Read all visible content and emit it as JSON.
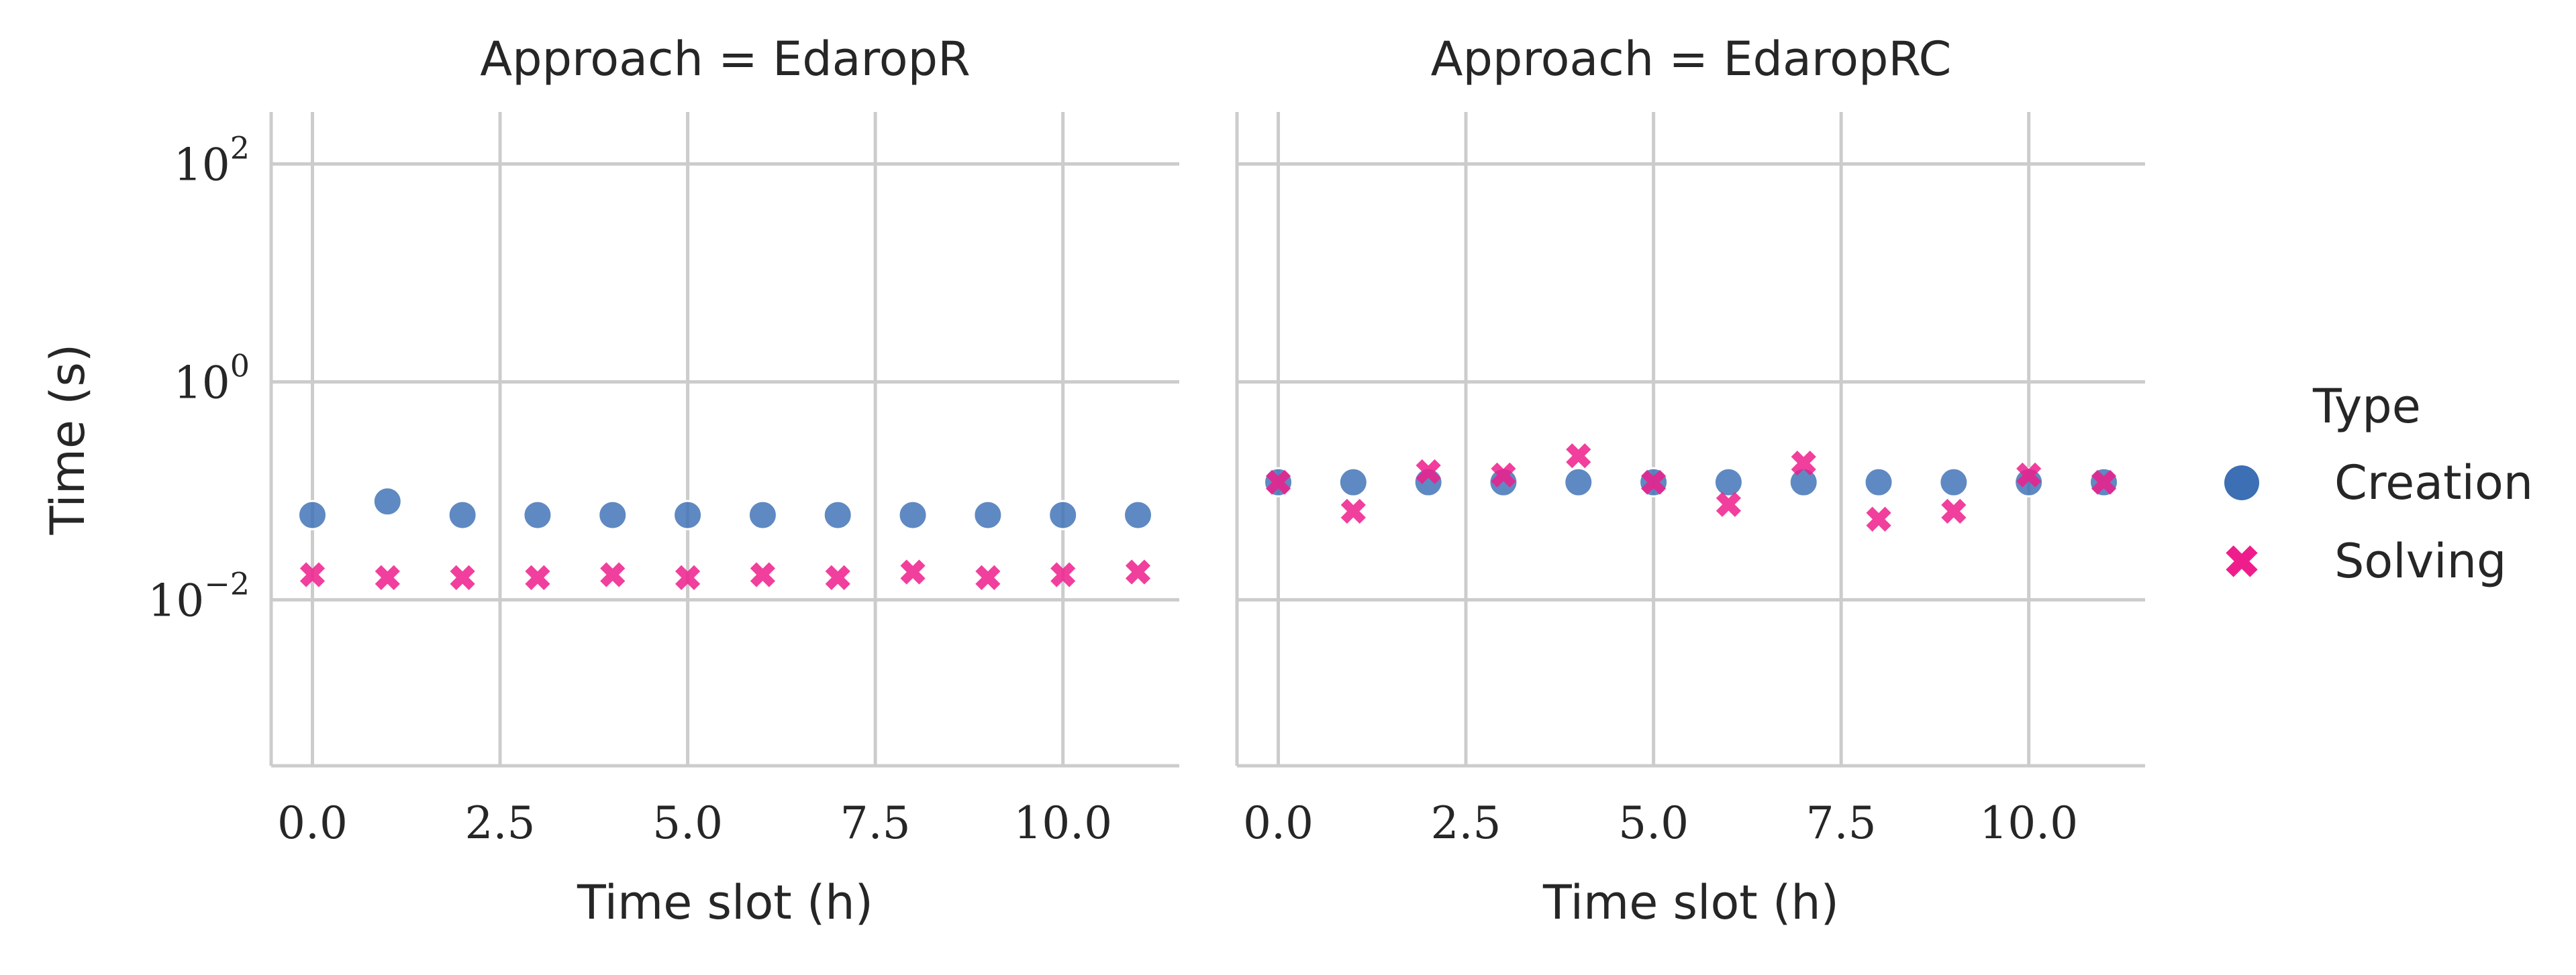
{
  "colors": {
    "background": "#ffffff",
    "grid": "#cccccc",
    "axis": "#cccccc",
    "text": "#262626",
    "creation": "#3c6fb4",
    "solving": "#ef1d8c"
  },
  "chart_data": {
    "type": "scatter",
    "x_label": "Time slot (h)",
    "y_label": "Time (s)",
    "y_scale": "log",
    "y_ticks": [
      {
        "value": 0.01,
        "base": "10",
        "exp": "−2"
      },
      {
        "value": 1,
        "base": "10",
        "exp": "0"
      },
      {
        "value": 100,
        "base": "10",
        "exp": "2"
      }
    ],
    "ylim": [
      0.0003,
      300
    ],
    "x_ticks": [
      "0.0",
      "2.5",
      "5.0",
      "7.5",
      "10.0"
    ],
    "x_tick_values": [
      0,
      2.5,
      5,
      7.5,
      10
    ],
    "xlim": [
      -0.55,
      11.55
    ],
    "grid": true,
    "legend": {
      "title": "Type",
      "placement": "right",
      "entries": [
        {
          "label": "Creation",
          "marker": "circle",
          "color": "#3c6fb4"
        },
        {
          "label": "Solving",
          "marker": "x",
          "color": "#ef1d8c"
        }
      ]
    },
    "panels": [
      {
        "title": "Approach = EdaropR",
        "x": [
          0,
          1,
          2,
          3,
          4,
          5,
          6,
          7,
          8,
          9,
          10,
          11
        ],
        "series": [
          {
            "name": "Creation",
            "values": [
              0.06,
              0.08,
              0.06,
              0.06,
              0.06,
              0.06,
              0.06,
              0.06,
              0.06,
              0.06,
              0.06,
              0.06
            ]
          },
          {
            "name": "Solving",
            "values": [
              0.017,
              0.016,
              0.016,
              0.016,
              0.017,
              0.016,
              0.017,
              0.016,
              0.018,
              0.016,
              0.017,
              0.018
            ]
          }
        ]
      },
      {
        "title": "Approach = EdaropRC",
        "x": [
          0,
          1,
          2,
          3,
          4,
          5,
          6,
          7,
          8,
          9,
          10,
          11
        ],
        "series": [
          {
            "name": "Creation",
            "values": [
              0.12,
              0.12,
              0.12,
              0.12,
              0.12,
              0.12,
              0.12,
              0.12,
              0.12,
              0.12,
              0.12,
              0.12
            ]
          },
          {
            "name": "Solving",
            "values": [
              0.12,
              0.065,
              0.15,
              0.14,
              0.21,
              0.12,
              0.075,
              0.18,
              0.055,
              0.065,
              0.14,
              0.12
            ]
          }
        ]
      }
    ]
  }
}
